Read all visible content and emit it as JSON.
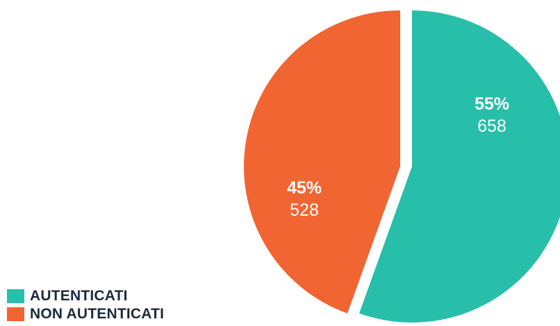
{
  "chart_data": {
    "type": "pie",
    "slices": [
      {
        "label": "AUTENTICATI",
        "percent_label": "55%",
        "value": 658,
        "color": "#27BEAA"
      },
      {
        "label": "NON AUTENTICATI",
        "percent_label": "45%",
        "value": 528,
        "color": "#F06532"
      }
    ],
    "legend_position": "bottom-left",
    "exploded": true
  }
}
